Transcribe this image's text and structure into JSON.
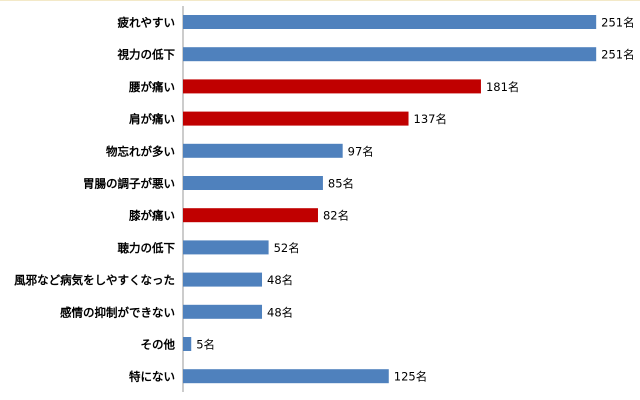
{
  "chart_data": {
    "type": "bar",
    "orientation": "horizontal",
    "categories": [
      "疲れやすい",
      "視力の低下",
      "腰が痛い",
      "肩が痛い",
      "物忘れが多い",
      "胃腸の調子が悪い",
      "膝が痛い",
      "聴力の低下",
      "風邪など病気をしやすくなった",
      "感情の抑制ができない",
      "その他",
      "特にない"
    ],
    "values": [
      251,
      251,
      181,
      137,
      97,
      85,
      82,
      52,
      48,
      48,
      5,
      125
    ],
    "value_labels": [
      "251名",
      "251名",
      "181名",
      "137名",
      "97名",
      "85名",
      "82名",
      "52名",
      "48名",
      "48名",
      "5名",
      "125名"
    ],
    "colors": [
      "#4f81bd",
      "#4f81bd",
      "#c00000",
      "#c00000",
      "#4f81bd",
      "#4f81bd",
      "#c00000",
      "#4f81bd",
      "#4f81bd",
      "#4f81bd",
      "#4f81bd",
      "#4f81bd"
    ],
    "xlim": [
      0,
      260
    ]
  }
}
